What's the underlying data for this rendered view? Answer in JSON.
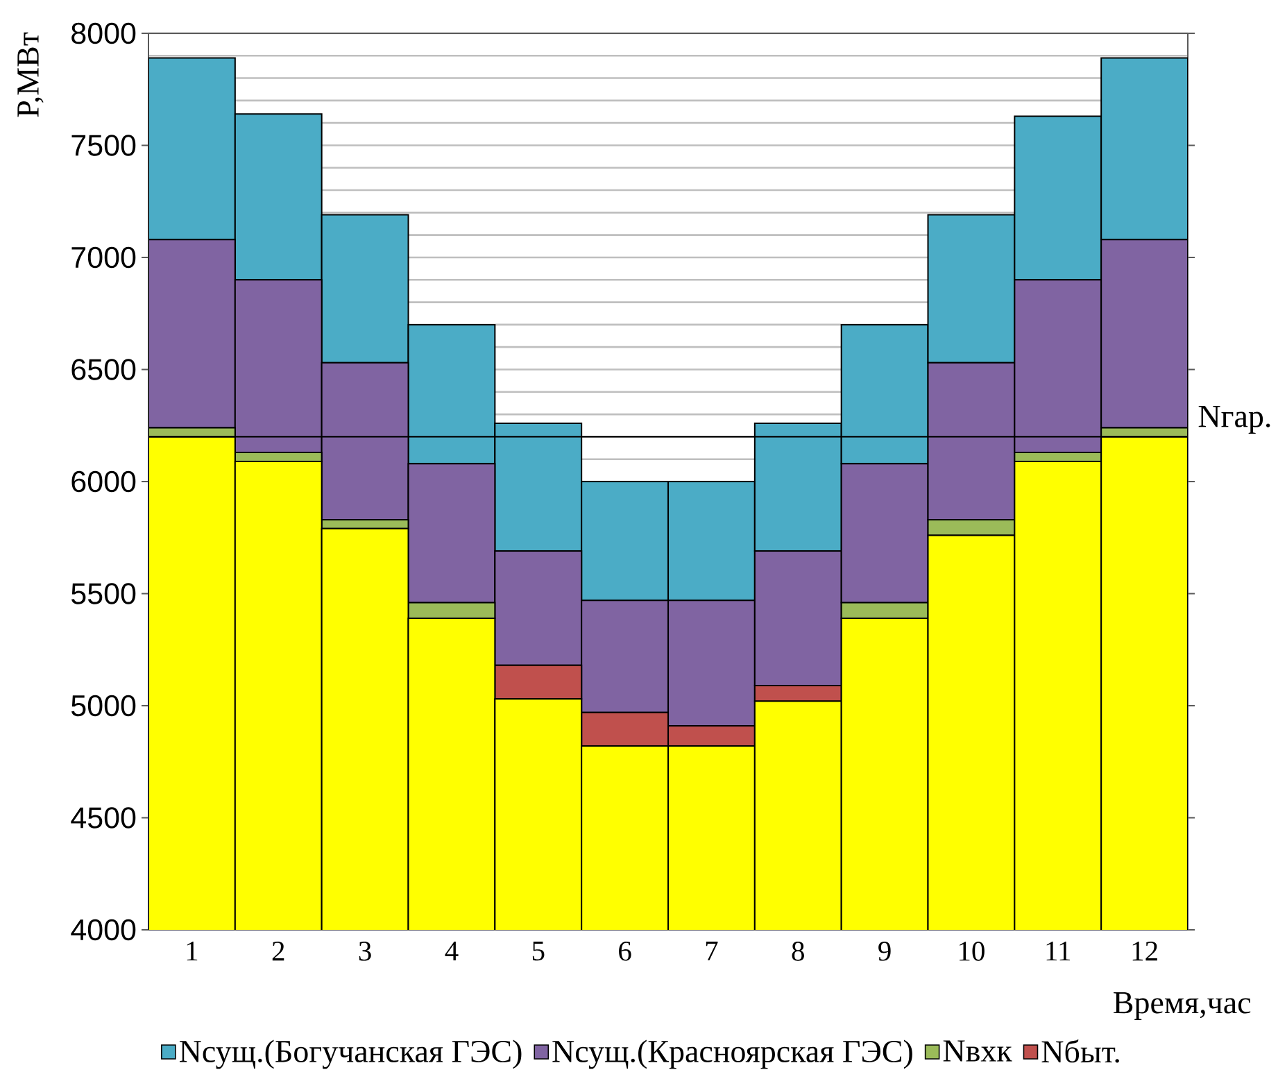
{
  "chart_data": {
    "type": "bar",
    "ylabel": "P,МВт",
    "xlabel": "Время,час",
    "categories": [
      "1",
      "2",
      "3",
      "4",
      "5",
      "6",
      "7",
      "8",
      "9",
      "10",
      "11",
      "12"
    ],
    "series": [
      {
        "name": "Nсущ.(Богучанская ГЭС)",
        "color": "#4bacc6",
        "values": [
          810,
          740,
          660,
          620,
          570,
          530,
          530,
          570,
          620,
          660,
          730,
          810
        ],
        "base": [
          7080,
          6900,
          6530,
          6080,
          5690,
          5470,
          5470,
          5690,
          6080,
          6530,
          6900,
          7080
        ]
      },
      {
        "name": "Nсущ.(Красноярская ГЭС)",
        "color": "#8064a2",
        "values": [
          840,
          770,
          700,
          620,
          510,
          500,
          560,
          600,
          620,
          700,
          770,
          840
        ],
        "base": [
          6240,
          6130,
          5830,
          5460,
          5180,
          4970,
          4910,
          5090,
          5460,
          5830,
          6130,
          6240
        ]
      },
      {
        "name": "Nвхк",
        "color": "#9bbb59",
        "values": [
          40,
          40,
          40,
          70,
          null,
          null,
          null,
          null,
          70,
          70,
          40,
          40
        ],
        "base": [
          6200,
          6090,
          5790,
          5390,
          null,
          null,
          null,
          null,
          5390,
          5760,
          6090,
          6200
        ]
      },
      {
        "name": "Nбыт.",
        "color": "#c0504d",
        "values": [
          null,
          null,
          null,
          null,
          150,
          150,
          90,
          70,
          null,
          null,
          null,
          null
        ],
        "base": [
          null,
          null,
          null,
          null,
          5030,
          4820,
          4820,
          5020,
          null,
          null,
          null,
          null
        ]
      },
      {
        "color": "#ffff00",
        "values": [
          6200,
          6090,
          5790,
          5390,
          5030,
          4820,
          4820,
          5020,
          5390,
          5760,
          6090,
          6200
        ]
      }
    ],
    "ylim": [
      4000,
      8000
    ],
    "yticks": [
      4000,
      4500,
      5000,
      5500,
      6000,
      6500,
      7000,
      7500,
      8000
    ],
    "grid": "y",
    "legend": "bottom",
    "ref_lines": [
      {
        "axis": "y",
        "value": 6200,
        "label": "Nгар.",
        "color": "#000000"
      }
    ]
  }
}
